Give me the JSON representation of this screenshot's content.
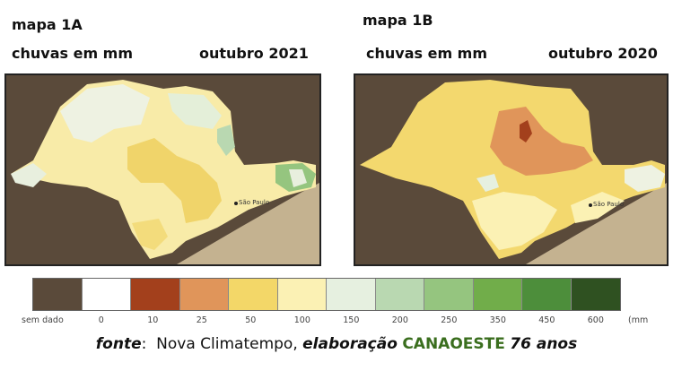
{
  "maps": [
    {
      "title": "mapa 1A",
      "subtitle": "chuvas em mm",
      "date": "outubro 2021",
      "city_label": "São Paulo"
    },
    {
      "title": "mapa 1B",
      "subtitle": "chuvas em mm",
      "date": "outubro 2020",
      "city_label": "São Paulo"
    }
  ],
  "legend": {
    "unit": "(mm",
    "entries": [
      {
        "label": "sem dado",
        "color": "#5a4a3a"
      },
      {
        "label": "0",
        "color": "#ffffff"
      },
      {
        "label": "10",
        "color": "#a3401c"
      },
      {
        "label": "25",
        "color": "#e0955a"
      },
      {
        "label": "50",
        "color": "#f3d768"
      },
      {
        "label": "100",
        "color": "#fbf1b4"
      },
      {
        "label": "150",
        "color": "#e6f0e0"
      },
      {
        "label": "200",
        "color": "#b9d8b1"
      },
      {
        "label": "250",
        "color": "#95c57f"
      },
      {
        "label": "350",
        "color": "#71ad4a"
      },
      {
        "label": "450",
        "color": "#4d8e3b"
      },
      {
        "label": "600",
        "color": "#2f5121"
      }
    ]
  },
  "footer": {
    "fonte": "fonte",
    "source": "Nova Climatempo,",
    "elaboracao": "elaboração",
    "brand": "CANAOESTE",
    "anos": "76 anos"
  }
}
